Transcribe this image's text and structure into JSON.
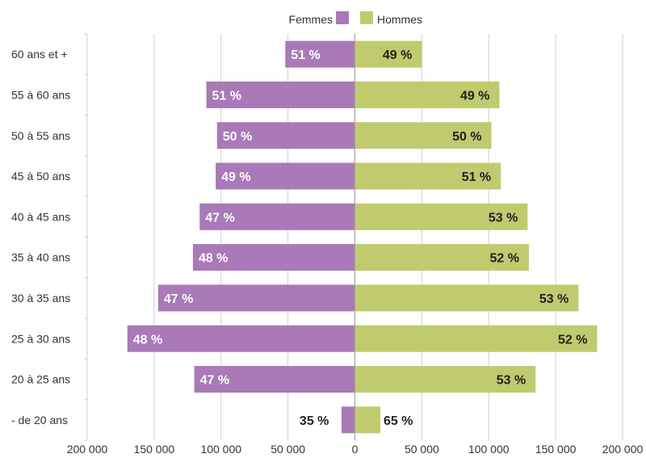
{
  "chart_data": {
    "type": "bar",
    "orientation": "horizontal",
    "layout": "population-pyramid",
    "categories": [
      "60 ans et +",
      "55 à 60 ans",
      "50 à 55 ans",
      "45 à 50 ans",
      "40 à 45 ans",
      "35 à 40 ans",
      "30 à 35 ans",
      "25 à 30 ans",
      "20 à 25 ans",
      "- de 20 ans"
    ],
    "series": [
      {
        "name": "Femmes",
        "color": "#a979b8",
        "side": "left",
        "values": [
          52000,
          111000,
          103000,
          104000,
          116000,
          121000,
          147000,
          170000,
          120000,
          10000
        ],
        "labels": [
          "51 %",
          "51 %",
          "50 %",
          "49 %",
          "47 %",
          "48 %",
          "47 %",
          "48 %",
          "47 %",
          "35 %"
        ]
      },
      {
        "name": "Hommes",
        "color": "#bfcb6e",
        "side": "right",
        "values": [
          50000,
          108000,
          102000,
          109000,
          129000,
          130000,
          167000,
          181000,
          135000,
          19000
        ],
        "labels": [
          "49 %",
          "49 %",
          "50 %",
          "51 %",
          "53 %",
          "52 %",
          "53 %",
          "52 %",
          "53 %",
          "65 %"
        ]
      }
    ],
    "xlim": [
      -200000,
      200000
    ],
    "x_ticks": [
      -200000,
      -150000,
      -100000,
      -50000,
      0,
      50000,
      100000,
      150000,
      200000
    ],
    "x_tick_labels": [
      "200 000",
      "150 000",
      "100 000",
      "50 000",
      "0",
      "50 000",
      "100 000",
      "150 000",
      "200 000"
    ],
    "grid": "vertical",
    "legend": "top-center",
    "title": "",
    "xlabel": "",
    "ylabel": ""
  }
}
